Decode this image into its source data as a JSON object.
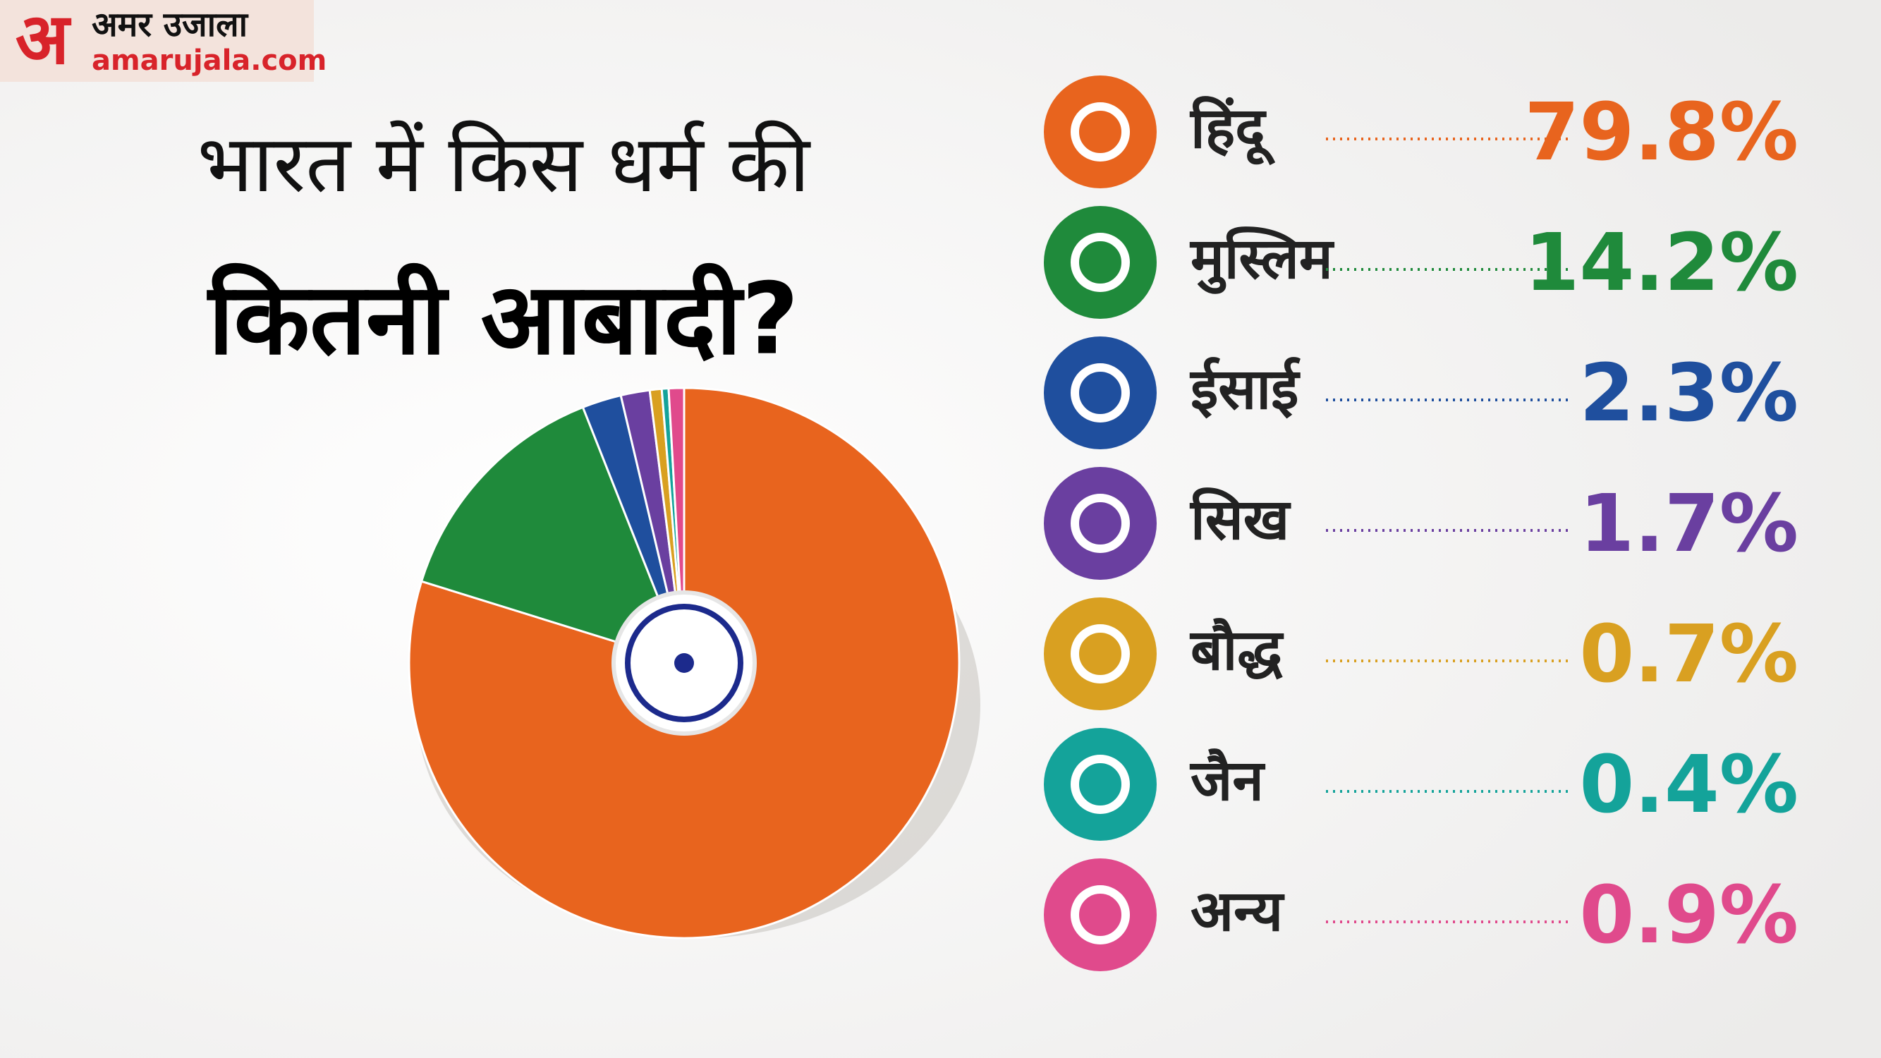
{
  "logo": {
    "mark": "अ",
    "name": "अमर उजाला",
    "site": "amarujala.com"
  },
  "chart_data": {
    "type": "pie",
    "title": [
      "भारत में किस धर्म की",
      "कितनी आबादी?"
    ],
    "categories": [
      "हिंदू",
      "मुस्लिम",
      "ईसाई",
      "सिख",
      "बौद्ध",
      "जैन",
      "अन्य"
    ],
    "values": [
      79.8,
      14.2,
      2.3,
      1.7,
      0.7,
      0.4,
      0.9
    ],
    "value_labels": [
      "79.8%",
      "14.2%",
      "2.3%",
      "1.7%",
      "0.7%",
      "0.4%",
      "0.9%"
    ],
    "colors": [
      "#e8641e",
      "#1f8a3b",
      "#1f4f9e",
      "#6a3fa0",
      "#d9a021",
      "#14a39a",
      "#e04a8c"
    ]
  }
}
